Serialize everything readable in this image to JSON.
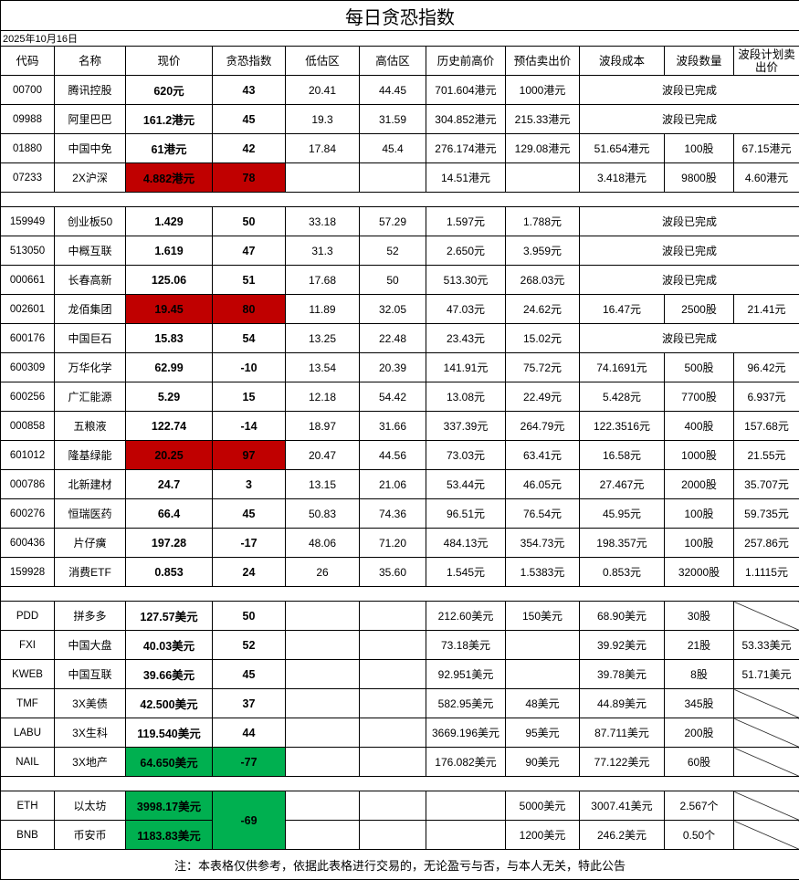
{
  "title": "每日贪恐指数",
  "date": "2025年10月16日",
  "headers": [
    "代码",
    "名称",
    "现价",
    "贪恐指数",
    "低估区",
    "高估区",
    "历史前高价",
    "预估卖出价",
    "波段成本",
    "波段数量",
    "波段计划卖出价"
  ],
  "colors": {
    "fear_high": "#c00000",
    "fear_low": "#00b050"
  },
  "sections": [
    {
      "rows": [
        {
          "code": "00700",
          "name": "腾讯控股",
          "price": "620元",
          "fear": "43",
          "low": "20.41",
          "high": "44.45",
          "hist": "701.604港元",
          "sell": "1000港元",
          "status": "波段已完成"
        },
        {
          "code": "09988",
          "name": "阿里巴巴",
          "price": "161.2港元",
          "fear": "45",
          "low": "19.3",
          "high": "31.59",
          "hist": "304.852港元",
          "sell": "215.33港元",
          "status": "波段已完成"
        },
        {
          "code": "01880",
          "name": "中国中免",
          "price": "61港元",
          "fear": "42",
          "low": "17.84",
          "high": "45.4",
          "hist": "276.174港元",
          "sell": "129.08港元",
          "cost": "51.654港元",
          "qty": "100股",
          "plan": "67.15港元"
        },
        {
          "code": "07233",
          "name": "2X沪深",
          "price": "4.882港元",
          "fear": "78",
          "low": "",
          "high": "",
          "hist": "14.51港元",
          "sell": "",
          "cost": "3.418港元",
          "qty": "9800股",
          "plan": "4.60港元",
          "highlight": "red"
        }
      ]
    },
    {
      "rows": [
        {
          "code": "159949",
          "name": "创业板50",
          "price": "1.429",
          "fear": "50",
          "low": "33.18",
          "high": "57.29",
          "hist": "1.597元",
          "sell": "1.788元",
          "status": "波段已完成"
        },
        {
          "code": "513050",
          "name": "中概互联",
          "price": "1.619",
          "fear": "47",
          "low": "31.3",
          "high": "52",
          "hist": "2.650元",
          "sell": "3.959元",
          "status": "波段已完成"
        },
        {
          "code": "000661",
          "name": "长春高新",
          "price": "125.06",
          "fear": "51",
          "low": "17.68",
          "high": "50",
          "hist": "513.30元",
          "sell": "268.03元",
          "status": "波段已完成"
        },
        {
          "code": "002601",
          "name": "龙佰集团",
          "price": "19.45",
          "fear": "80",
          "low": "11.89",
          "high": "32.05",
          "hist": "47.03元",
          "sell": "24.62元",
          "cost": "16.47元",
          "qty": "2500股",
          "plan": "21.41元",
          "highlight": "red"
        },
        {
          "code": "600176",
          "name": "中国巨石",
          "price": "15.83",
          "fear": "54",
          "low": "13.25",
          "high": "22.48",
          "hist": "23.43元",
          "sell": "15.02元",
          "status": "波段已完成"
        },
        {
          "code": "600309",
          "name": "万华化学",
          "price": "62.99",
          "fear": "-10",
          "low": "13.54",
          "high": "20.39",
          "hist": "141.91元",
          "sell": "75.72元",
          "cost": "74.1691元",
          "qty": "500股",
          "plan": "96.42元"
        },
        {
          "code": "600256",
          "name": "广汇能源",
          "price": "5.29",
          "fear": "15",
          "low": "12.18",
          "high": "54.42",
          "hist": "13.08元",
          "sell": "22.49元",
          "cost": "5.428元",
          "qty": "7700股",
          "plan": "6.937元"
        },
        {
          "code": "000858",
          "name": "五粮液",
          "price": "122.74",
          "fear": "-14",
          "low": "18.97",
          "high": "31.66",
          "hist": "337.39元",
          "sell": "264.79元",
          "cost": "122.3516元",
          "qty": "400股",
          "plan": "157.68元"
        },
        {
          "code": "601012",
          "name": "隆基绿能",
          "price": "20.25",
          "fear": "97",
          "low": "20.47",
          "high": "44.56",
          "hist": "73.03元",
          "sell": "63.41元",
          "cost": "16.58元",
          "qty": "1000股",
          "plan": "21.55元",
          "highlight": "red"
        },
        {
          "code": "000786",
          "name": "北新建材",
          "price": "24.7",
          "fear": "3",
          "low": "13.15",
          "high": "21.06",
          "hist": "53.44元",
          "sell": "46.05元",
          "cost": "27.467元",
          "qty": "2000股",
          "plan": "35.707元"
        },
        {
          "code": "600276",
          "name": "恒瑞医药",
          "price": "66.4",
          "fear": "45",
          "low": "50.83",
          "high": "74.36",
          "hist": "96.51元",
          "sell": "76.54元",
          "cost": "45.95元",
          "qty": "100股",
          "plan": "59.735元"
        },
        {
          "code": "600436",
          "name": "片仔癀",
          "price": "197.28",
          "fear": "-17",
          "low": "48.06",
          "high": "71.20",
          "hist": "484.13元",
          "sell": "354.73元",
          "cost": "198.357元",
          "qty": "100股",
          "plan": "257.86元"
        },
        {
          "code": "159928",
          "name": "消费ETF",
          "price": "0.853",
          "fear": "24",
          "low": "26",
          "high": "35.60",
          "hist": "1.545元",
          "sell": "1.5383元",
          "cost": "0.853元",
          "qty": "32000股",
          "plan": "1.1115元"
        }
      ]
    },
    {
      "rows": [
        {
          "code": "PDD",
          "name": "拼多多",
          "price": "127.57美元",
          "fear": "50",
          "low": "",
          "high": "",
          "hist": "212.60美元",
          "sell": "150美元",
          "cost": "68.90美元",
          "qty": "30股",
          "plan": "",
          "diagonal": true
        },
        {
          "code": "FXI",
          "name": "中国大盘",
          "price": "40.03美元",
          "fear": "52",
          "low": "",
          "high": "",
          "hist": "73.18美元",
          "sell": "",
          "cost": "39.92美元",
          "qty": "21股",
          "plan": "53.33美元"
        },
        {
          "code": "KWEB",
          "name": "中国互联",
          "price": "39.66美元",
          "fear": "45",
          "low": "",
          "high": "",
          "hist": "92.951美元",
          "sell": "",
          "cost": "39.78美元",
          "qty": "8股",
          "plan": "51.71美元"
        },
        {
          "code": "TMF",
          "name": "3X美债",
          "price": "42.500美元",
          "fear": "37",
          "low": "",
          "high": "",
          "hist": "582.95美元",
          "sell": "48美元",
          "cost": "44.89美元",
          "qty": "345股",
          "plan": "",
          "diagonal": true
        },
        {
          "code": "LABU",
          "name": "3X生科",
          "price": "119.540美元",
          "fear": "44",
          "low": "",
          "high": "",
          "hist": "3669.196美元",
          "sell": "95美元",
          "cost": "87.711美元",
          "qty": "200股",
          "plan": "",
          "diagonal": true
        },
        {
          "code": "NAIL",
          "name": "3X地产",
          "price": "64.650美元",
          "fear": "-77",
          "low": "",
          "high": "",
          "hist": "176.082美元",
          "sell": "90美元",
          "cost": "77.122美元",
          "qty": "60股",
          "plan": "",
          "diagonal": true,
          "highlight": "green"
        }
      ]
    },
    {
      "shared_fear": "-69",
      "rows": [
        {
          "code": "ETH",
          "name": "以太坊",
          "price": "3998.17美元",
          "low": "",
          "high": "",
          "hist": "",
          "sell": "5000美元",
          "cost": "3007.41美元",
          "qty": "2.567个",
          "plan": "",
          "diagonal": true,
          "highlight": "green"
        },
        {
          "code": "BNB",
          "name": "币安币",
          "price": "1183.83美元",
          "low": "",
          "high": "",
          "hist": "",
          "sell": "1200美元",
          "cost": "246.2美元",
          "qty": "0.50个",
          "plan": "",
          "diagonal": true,
          "highlight": "green"
        }
      ]
    }
  ],
  "footer": "注：本表格仅供参考，依据此表格进行交易的，无论盈亏与否，与本人无关，特此公告"
}
